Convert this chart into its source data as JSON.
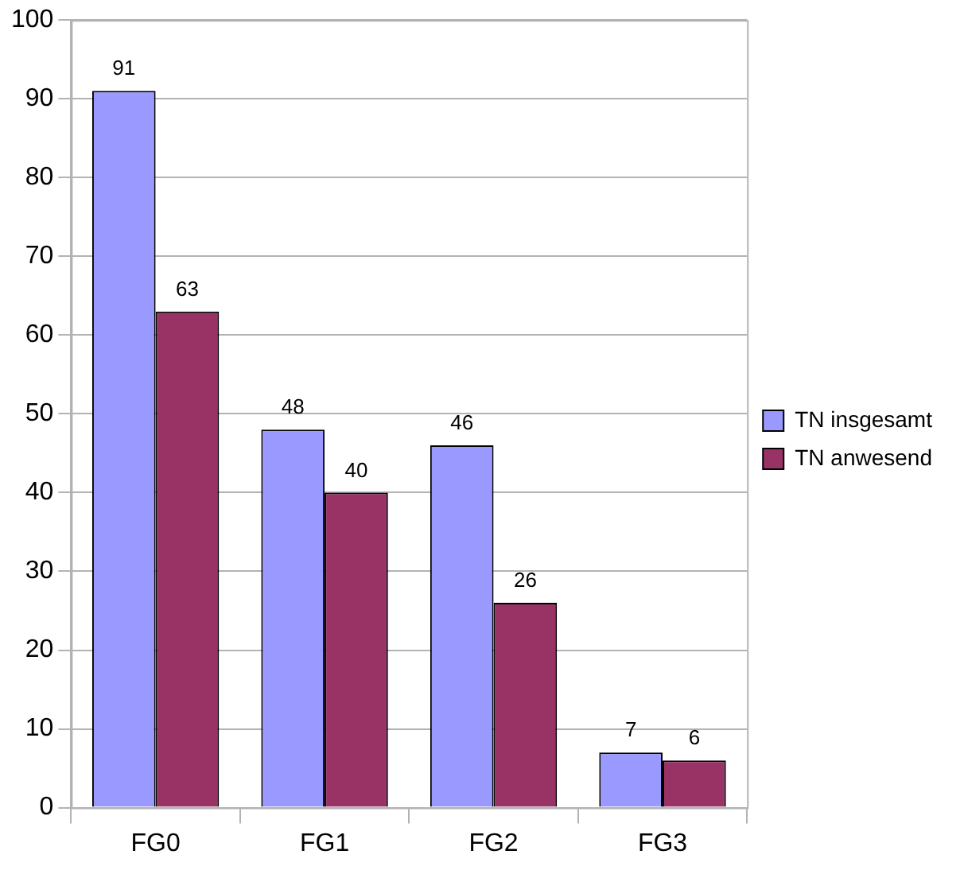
{
  "chart_data": {
    "type": "bar",
    "categories": [
      "FG0",
      "FG1",
      "FG2",
      "FG3"
    ],
    "series": [
      {
        "name": "TN insgesamt",
        "color": "#9999ff",
        "values": [
          91,
          48,
          46,
          7
        ]
      },
      {
        "name": "TN anwesend",
        "color": "#993366",
        "values": [
          63,
          40,
          26,
          6
        ]
      }
    ],
    "ylim": [
      0,
      100
    ],
    "yticks": [
      0,
      10,
      20,
      30,
      40,
      50,
      60,
      70,
      80,
      90,
      100
    ],
    "grid": "y",
    "legend": "right",
    "data_labels": true
  }
}
